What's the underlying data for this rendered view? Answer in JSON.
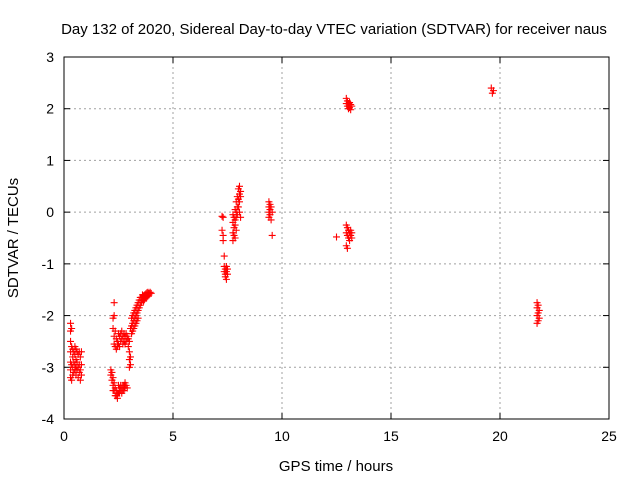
{
  "chart_data": {
    "type": "scatter",
    "title": "Day 132 of 2020, Sidereal Day-to-day VTEC variation (SDTVAR) for receiver naus",
    "xlabel": "GPS time / hours",
    "ylabel": "SDTVAR / TECUs",
    "xlim": [
      0,
      25
    ],
    "ylim": [
      -4,
      3
    ],
    "xticks": [
      0,
      5,
      10,
      15,
      20,
      25
    ],
    "yticks": [
      -4,
      -3,
      -2,
      -1,
      0,
      1,
      2,
      3
    ],
    "xtick_labels": [
      "0",
      "5",
      "10",
      "15",
      "20",
      "25"
    ],
    "ytick_labels": [
      "-4",
      "-3",
      "-2",
      "-1",
      "0",
      "1",
      "2",
      "3"
    ],
    "grid": true,
    "marker": "+",
    "color": "#ff0000",
    "series": [
      {
        "name": "SDTVAR",
        "points": [
          [
            0.3,
            -2.15
          ],
          [
            0.3,
            -2.3
          ],
          [
            0.3,
            -2.5
          ],
          [
            0.3,
            -2.7
          ],
          [
            0.3,
            -2.9
          ],
          [
            0.3,
            -3.05
          ],
          [
            0.3,
            -3.2
          ],
          [
            0.35,
            -2.25
          ],
          [
            0.35,
            -2.6
          ],
          [
            0.35,
            -2.95
          ],
          [
            0.35,
            -3.25
          ],
          [
            0.4,
            -2.65
          ],
          [
            0.4,
            -2.8
          ],
          [
            0.4,
            -3.0
          ],
          [
            0.4,
            -3.15
          ],
          [
            0.45,
            -2.7
          ],
          [
            0.45,
            -2.9
          ],
          [
            0.45,
            -3.1
          ],
          [
            0.5,
            -2.6
          ],
          [
            0.5,
            -2.75
          ],
          [
            0.5,
            -2.95
          ],
          [
            0.5,
            -3.05
          ],
          [
            0.55,
            -2.65
          ],
          [
            0.55,
            -2.85
          ],
          [
            0.55,
            -3.0
          ],
          [
            0.55,
            -3.15
          ],
          [
            0.6,
            -2.7
          ],
          [
            0.6,
            -2.9
          ],
          [
            0.6,
            -3.05
          ],
          [
            0.65,
            -2.75
          ],
          [
            0.65,
            -3.0
          ],
          [
            0.65,
            -3.2
          ],
          [
            0.7,
            -2.7
          ],
          [
            0.7,
            -2.95
          ],
          [
            0.7,
            -3.1
          ],
          [
            0.75,
            -2.8
          ],
          [
            0.75,
            -3.05
          ],
          [
            0.75,
            -3.25
          ],
          [
            0.8,
            -2.7
          ],
          [
            0.8,
            -2.95
          ],
          [
            0.8,
            -3.15
          ],
          [
            2.15,
            -3.05
          ],
          [
            2.15,
            -3.15
          ],
          [
            2.2,
            -3.1
          ],
          [
            2.2,
            -3.25
          ],
          [
            2.25,
            -3.2
          ],
          [
            2.25,
            -3.35
          ],
          [
            2.25,
            -3.45
          ],
          [
            2.25,
            -2.05
          ],
          [
            2.25,
            -2.25
          ],
          [
            2.3,
            -3.3
          ],
          [
            2.3,
            -3.45
          ],
          [
            2.3,
            -2.0
          ],
          [
            2.3,
            -2.4
          ],
          [
            2.3,
            -2.55
          ],
          [
            2.3,
            -1.75
          ],
          [
            2.35,
            -3.4
          ],
          [
            2.35,
            -3.55
          ],
          [
            2.35,
            -2.3
          ],
          [
            2.35,
            -2.6
          ],
          [
            2.4,
            -3.45
          ],
          [
            2.4,
            -3.55
          ],
          [
            2.4,
            -2.45
          ],
          [
            2.4,
            -2.65
          ],
          [
            2.45,
            -3.5
          ],
          [
            2.45,
            -3.6
          ],
          [
            2.45,
            -2.5
          ],
          [
            2.45,
            -2.6
          ],
          [
            2.5,
            -3.35
          ],
          [
            2.5,
            -3.5
          ],
          [
            2.5,
            -2.35
          ],
          [
            2.5,
            -2.55
          ],
          [
            2.55,
            -3.4
          ],
          [
            2.55,
            -3.5
          ],
          [
            2.55,
            -2.4
          ],
          [
            2.55,
            -2.6
          ],
          [
            2.6,
            -3.35
          ],
          [
            2.6,
            -3.45
          ],
          [
            2.6,
            -2.35
          ],
          [
            2.6,
            -2.5
          ],
          [
            2.65,
            -3.4
          ],
          [
            2.65,
            -3.5
          ],
          [
            2.65,
            -2.3
          ],
          [
            2.65,
            -2.45
          ],
          [
            2.7,
            -3.35
          ],
          [
            2.7,
            -3.45
          ],
          [
            2.7,
            -2.4
          ],
          [
            2.7,
            -2.55
          ],
          [
            2.75,
            -3.35
          ],
          [
            2.75,
            -3.45
          ],
          [
            2.75,
            -2.35
          ],
          [
            2.75,
            -2.5
          ],
          [
            2.8,
            -3.3
          ],
          [
            2.8,
            -3.4
          ],
          [
            2.8,
            -2.4
          ],
          [
            2.8,
            -2.55
          ],
          [
            2.85,
            -3.35
          ],
          [
            2.85,
            -2.35
          ],
          [
            2.85,
            -2.5
          ],
          [
            2.9,
            -3.4
          ],
          [
            2.9,
            -2.4
          ],
          [
            2.9,
            -2.45
          ],
          [
            2.95,
            -2.45
          ],
          [
            2.95,
            -2.6
          ],
          [
            3.0,
            -2.5
          ],
          [
            3.0,
            -2.7
          ],
          [
            3.0,
            -2.85
          ],
          [
            3.0,
            -3.0
          ],
          [
            3.05,
            -2.8
          ],
          [
            3.05,
            -2.95
          ],
          [
            3.05,
            -2.25
          ],
          [
            3.1,
            -2.2
          ],
          [
            3.1,
            -2.35
          ],
          [
            3.1,
            -2.05
          ],
          [
            3.15,
            -2.15
          ],
          [
            3.15,
            -2.3
          ],
          [
            3.15,
            -2.0
          ],
          [
            3.2,
            -2.1
          ],
          [
            3.2,
            -2.25
          ],
          [
            3.2,
            -1.95
          ],
          [
            3.25,
            -2.05
          ],
          [
            3.25,
            -2.2
          ],
          [
            3.25,
            -1.9
          ],
          [
            3.3,
            -1.85
          ],
          [
            3.3,
            -2.0
          ],
          [
            3.3,
            -2.15
          ],
          [
            3.35,
            -1.8
          ],
          [
            3.35,
            -1.95
          ],
          [
            3.35,
            -2.1
          ],
          [
            3.4,
            -1.75
          ],
          [
            3.4,
            -1.9
          ],
          [
            3.4,
            -2.05
          ],
          [
            3.45,
            -1.7
          ],
          [
            3.45,
            -1.85
          ],
          [
            3.5,
            -1.65
          ],
          [
            3.5,
            -1.8
          ],
          [
            3.55,
            -1.65
          ],
          [
            3.55,
            -1.75
          ],
          [
            3.6,
            -1.6
          ],
          [
            3.6,
            -1.7
          ],
          [
            3.65,
            -1.62
          ],
          [
            3.65,
            -1.72
          ],
          [
            3.7,
            -1.6
          ],
          [
            3.7,
            -1.68
          ],
          [
            3.75,
            -1.58
          ],
          [
            3.75,
            -1.66
          ],
          [
            3.8,
            -1.56
          ],
          [
            3.8,
            -1.64
          ],
          [
            3.85,
            -1.55
          ],
          [
            3.85,
            -1.62
          ],
          [
            3.9,
            -1.57
          ],
          [
            3.9,
            -1.6
          ],
          [
            3.95,
            -1.55
          ],
          [
            4.0,
            -1.57
          ],
          [
            7.25,
            -0.08
          ],
          [
            7.25,
            -0.35
          ],
          [
            7.3,
            -0.45
          ],
          [
            7.3,
            -0.55
          ],
          [
            7.3,
            -0.1
          ],
          [
            7.35,
            -1.05
          ],
          [
            7.35,
            -1.15
          ],
          [
            7.35,
            -0.85
          ],
          [
            7.4,
            -1.1
          ],
          [
            7.4,
            -1.2
          ],
          [
            7.4,
            -1.25
          ],
          [
            7.45,
            -1.05
          ],
          [
            7.45,
            -1.15
          ],
          [
            7.45,
            -1.3
          ],
          [
            7.5,
            -1.1
          ],
          [
            7.5,
            -1.2
          ],
          [
            7.75,
            -0.05
          ],
          [
            7.75,
            -0.2
          ],
          [
            7.75,
            -0.4
          ],
          [
            7.75,
            -0.55
          ],
          [
            7.8,
            -0.1
          ],
          [
            7.8,
            -0.3
          ],
          [
            7.8,
            -0.45
          ],
          [
            7.85,
            0.05
          ],
          [
            7.85,
            -0.15
          ],
          [
            7.85,
            -0.25
          ],
          [
            7.85,
            -0.5
          ],
          [
            7.9,
            0.2
          ],
          [
            7.9,
            0.0
          ],
          [
            7.9,
            -0.1
          ],
          [
            7.9,
            -0.35
          ],
          [
            7.95,
            0.3
          ],
          [
            7.95,
            0.1
          ],
          [
            7.95,
            -0.05
          ],
          [
            8.0,
            0.45
          ],
          [
            8.0,
            0.25
          ],
          [
            8.0,
            0.1
          ],
          [
            8.05,
            0.5
          ],
          [
            8.05,
            0.35
          ],
          [
            8.05,
            0.2
          ],
          [
            8.05,
            0.0
          ],
          [
            8.1,
            0.4
          ],
          [
            8.1,
            0.3
          ],
          [
            8.1,
            -0.1
          ],
          [
            9.4,
            0.2
          ],
          [
            9.4,
            0.1
          ],
          [
            9.4,
            0.0
          ],
          [
            9.4,
            -0.1
          ],
          [
            9.45,
            0.15
          ],
          [
            9.45,
            0.05
          ],
          [
            9.45,
            -0.05
          ],
          [
            9.5,
            0.1
          ],
          [
            9.5,
            -0.15
          ],
          [
            9.55,
            0.0
          ],
          [
            9.55,
            -0.45
          ],
          [
            12.5,
            -0.48
          ],
          [
            12.95,
            -0.25
          ],
          [
            12.95,
            -0.4
          ],
          [
            12.95,
            -0.65
          ],
          [
            13.0,
            -0.3
          ],
          [
            13.0,
            -0.45
          ],
          [
            13.0,
            -0.7
          ],
          [
            13.05,
            -0.35
          ],
          [
            13.05,
            -0.5
          ],
          [
            13.1,
            -0.4
          ],
          [
            13.1,
            -0.55
          ],
          [
            13.15,
            -0.35
          ],
          [
            13.15,
            -0.45
          ],
          [
            13.2,
            -0.4
          ],
          [
            13.2,
            -0.5
          ],
          [
            12.95,
            2.2
          ],
          [
            12.95,
            2.1
          ],
          [
            13.0,
            2.15
          ],
          [
            13.0,
            2.05
          ],
          [
            13.05,
            2.1
          ],
          [
            13.05,
            2.0
          ],
          [
            13.1,
            2.12
          ],
          [
            13.1,
            2.02
          ],
          [
            13.15,
            2.08
          ],
          [
            13.15,
            1.98
          ],
          [
            13.2,
            2.05
          ],
          [
            19.6,
            2.4
          ],
          [
            19.65,
            2.3
          ],
          [
            19.7,
            2.35
          ],
          [
            21.7,
            -1.75
          ],
          [
            21.7,
            -1.85
          ],
          [
            21.7,
            -2.0
          ],
          [
            21.7,
            -2.15
          ],
          [
            21.75,
            -1.8
          ],
          [
            21.75,
            -1.95
          ],
          [
            21.75,
            -2.1
          ],
          [
            21.8,
            -1.9
          ],
          [
            21.8,
            -2.05
          ]
        ]
      }
    ]
  }
}
